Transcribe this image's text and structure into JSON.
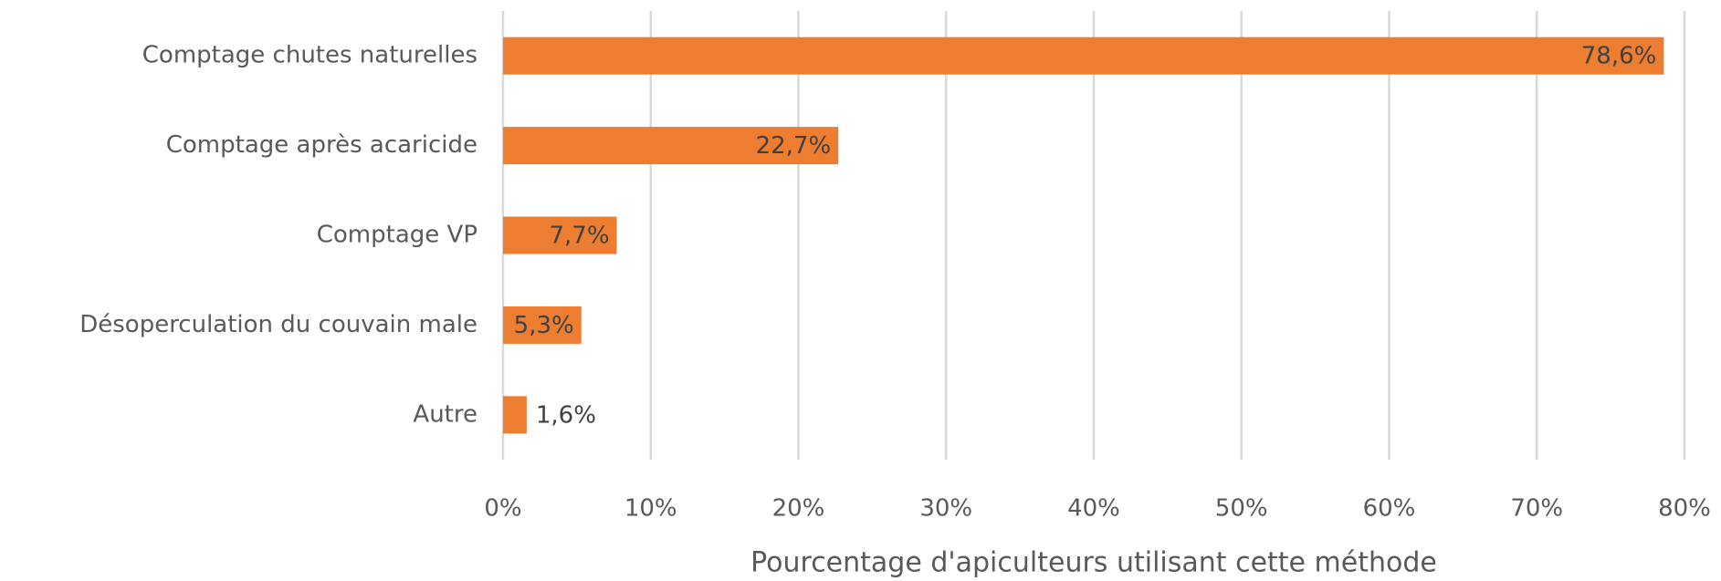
{
  "chart_data": {
    "type": "barh",
    "categories": [
      "Comptage chutes naturelles",
      "Comptage après acaricide",
      "Comptage VP",
      "Désoperculation du couvain male",
      "Autre"
    ],
    "values": [
      78.6,
      22.7,
      7.7,
      5.3,
      1.6
    ],
    "value_labels": [
      "78,6%",
      "22,7%",
      "7,7%",
      "5,3%",
      "1,6%"
    ],
    "color": "#ed7d31",
    "xlabel": "Pourcentage d'apiculteurs utilisant cette méthode",
    "xlim": [
      0,
      80
    ],
    "xticks": [
      {
        "value": 0,
        "label": "0%"
      },
      {
        "value": 10,
        "label": "10%"
      },
      {
        "value": 20,
        "label": "20%"
      },
      {
        "value": 30,
        "label": "30%"
      },
      {
        "value": 40,
        "label": "40%"
      },
      {
        "value": 50,
        "label": "50%"
      },
      {
        "value": 60,
        "label": "60%"
      },
      {
        "value": 70,
        "label": "70%"
      },
      {
        "value": 80,
        "label": "80%"
      }
    ],
    "grid": true
  }
}
